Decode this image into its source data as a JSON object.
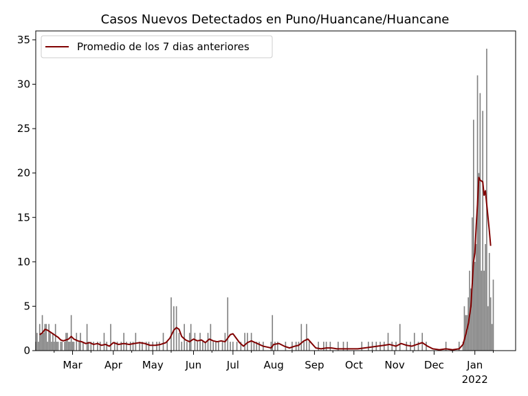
{
  "chart_data": {
    "type": "bar",
    "title": "Casos Nuevos Detectados en Puno/Huancane/Huancane",
    "xlabel": "",
    "ylabel": "",
    "ylim": [
      0,
      36
    ],
    "y_ticks": [
      "0",
      "5",
      "10",
      "15",
      "20",
      "25",
      "30",
      "35"
    ],
    "x_start": "2021-02-01",
    "x_end": "2022-01-31",
    "month_ticks": [
      {
        "label": "Mar",
        "date": "2021-03-01"
      },
      {
        "label": "Apr",
        "date": "2021-04-01"
      },
      {
        "label": "May",
        "date": "2021-05-01"
      },
      {
        "label": "Jun",
        "date": "2021-06-01"
      },
      {
        "label": "Jul",
        "date": "2021-07-01"
      },
      {
        "label": "Aug",
        "date": "2021-08-01"
      },
      {
        "label": "Sep",
        "date": "2021-09-01"
      },
      {
        "label": "Oct",
        "date": "2021-10-01"
      },
      {
        "label": "Nov",
        "date": "2021-11-01"
      },
      {
        "label": "Dec",
        "date": "2021-12-01"
      },
      {
        "label": "Jan",
        "date": "2022-01-01"
      }
    ],
    "year_label": "2022",
    "legend": {
      "position": "top-left",
      "entries": [
        {
          "name": "Promedio de los 7 dias anteriores",
          "color": "#800000"
        }
      ]
    },
    "bar_color": "#808080",
    "grid": false,
    "series": [
      {
        "name": "Casos nuevos",
        "kind": "bar",
        "points": [
          [
            "2021-02-01",
            1
          ],
          [
            "2021-02-02",
            2
          ],
          [
            "2021-02-03",
            1
          ],
          [
            "2021-02-04",
            3
          ],
          [
            "2021-02-05",
            2
          ],
          [
            "2021-02-06",
            4
          ],
          [
            "2021-02-07",
            2
          ],
          [
            "2021-02-08",
            3
          ],
          [
            "2021-02-09",
            3
          ],
          [
            "2021-02-10",
            1
          ],
          [
            "2021-02-11",
            3
          ],
          [
            "2021-02-12",
            2
          ],
          [
            "2021-02-13",
            1
          ],
          [
            "2021-02-14",
            2
          ],
          [
            "2021-02-15",
            1
          ],
          [
            "2021-02-16",
            3
          ],
          [
            "2021-02-17",
            1
          ],
          [
            "2021-02-18",
            1
          ],
          [
            "2021-02-20",
            1
          ],
          [
            "2021-02-21",
            1
          ],
          [
            "2021-02-23",
            1
          ],
          [
            "2021-02-24",
            2
          ],
          [
            "2021-02-25",
            2
          ],
          [
            "2021-02-26",
            1
          ],
          [
            "2021-02-27",
            1
          ],
          [
            "2021-02-28",
            4
          ],
          [
            "2021-03-01",
            1
          ],
          [
            "2021-03-02",
            1
          ],
          [
            "2021-03-04",
            2
          ],
          [
            "2021-03-06",
            1
          ],
          [
            "2021-03-07",
            2
          ],
          [
            "2021-03-09",
            1
          ],
          [
            "2021-03-12",
            3
          ],
          [
            "2021-03-13",
            1
          ],
          [
            "2021-03-15",
            1
          ],
          [
            "2021-03-17",
            1
          ],
          [
            "2021-03-20",
            1
          ],
          [
            "2021-03-22",
            1
          ],
          [
            "2021-03-25",
            2
          ],
          [
            "2021-03-27",
            1
          ],
          [
            "2021-03-30",
            3
          ],
          [
            "2021-04-02",
            1
          ],
          [
            "2021-04-04",
            1
          ],
          [
            "2021-04-07",
            1
          ],
          [
            "2021-04-09",
            2
          ],
          [
            "2021-04-11",
            1
          ],
          [
            "2021-04-14",
            1
          ],
          [
            "2021-04-16",
            1
          ],
          [
            "2021-04-18",
            2
          ],
          [
            "2021-04-21",
            1
          ],
          [
            "2021-04-23",
            1
          ],
          [
            "2021-04-26",
            1
          ],
          [
            "2021-04-28",
            1
          ],
          [
            "2021-05-01",
            1
          ],
          [
            "2021-05-04",
            1
          ],
          [
            "2021-05-06",
            1
          ],
          [
            "2021-05-09",
            2
          ],
          [
            "2021-05-12",
            1
          ],
          [
            "2021-05-15",
            6
          ],
          [
            "2021-05-17",
            5
          ],
          [
            "2021-05-19",
            5
          ],
          [
            "2021-05-21",
            2
          ],
          [
            "2021-05-23",
            1
          ],
          [
            "2021-05-25",
            3
          ],
          [
            "2021-05-27",
            1
          ],
          [
            "2021-05-29",
            2
          ],
          [
            "2021-05-30",
            3
          ],
          [
            "2021-06-02",
            2
          ],
          [
            "2021-06-04",
            1
          ],
          [
            "2021-06-06",
            2
          ],
          [
            "2021-06-08",
            1
          ],
          [
            "2021-06-10",
            1
          ],
          [
            "2021-06-12",
            2
          ],
          [
            "2021-06-14",
            3
          ],
          [
            "2021-06-16",
            1
          ],
          [
            "2021-06-18",
            1
          ],
          [
            "2021-06-20",
            1
          ],
          [
            "2021-06-23",
            1
          ],
          [
            "2021-06-25",
            2
          ],
          [
            "2021-06-27",
            6
          ],
          [
            "2021-06-29",
            1
          ],
          [
            "2021-07-01",
            1
          ],
          [
            "2021-07-04",
            1
          ],
          [
            "2021-07-07",
            1
          ],
          [
            "2021-07-10",
            2
          ],
          [
            "2021-07-12",
            2
          ],
          [
            "2021-07-15",
            2
          ],
          [
            "2021-07-17",
            1
          ],
          [
            "2021-07-19",
            1
          ],
          [
            "2021-07-21",
            1
          ],
          [
            "2021-07-24",
            1
          ],
          [
            "2021-07-30",
            1
          ],
          [
            "2021-07-31",
            4
          ],
          [
            "2021-08-02",
            1
          ],
          [
            "2021-08-04",
            1
          ],
          [
            "2021-08-10",
            1
          ],
          [
            "2021-08-15",
            1
          ],
          [
            "2021-08-18",
            1
          ],
          [
            "2021-08-20",
            1
          ],
          [
            "2021-08-22",
            3
          ],
          [
            "2021-08-24",
            1
          ],
          [
            "2021-08-26",
            3
          ],
          [
            "2021-08-28",
            1
          ],
          [
            "2021-09-04",
            1
          ],
          [
            "2021-09-08",
            1
          ],
          [
            "2021-09-10",
            1
          ],
          [
            "2021-09-13",
            1
          ],
          [
            "2021-09-19",
            1
          ],
          [
            "2021-09-23",
            1
          ],
          [
            "2021-09-26",
            1
          ],
          [
            "2021-10-07",
            1
          ],
          [
            "2021-10-12",
            1
          ],
          [
            "2021-10-15",
            1
          ],
          [
            "2021-10-18",
            1
          ],
          [
            "2021-10-21",
            1
          ],
          [
            "2021-10-24",
            1
          ],
          [
            "2021-10-27",
            2
          ],
          [
            "2021-10-30",
            1
          ],
          [
            "2021-11-02",
            1
          ],
          [
            "2021-11-05",
            3
          ],
          [
            "2021-11-10",
            1
          ],
          [
            "2021-11-13",
            1
          ],
          [
            "2021-11-16",
            2
          ],
          [
            "2021-11-19",
            1
          ],
          [
            "2021-11-22",
            2
          ],
          [
            "2021-11-25",
            1
          ],
          [
            "2021-12-10",
            1
          ],
          [
            "2021-12-20",
            1
          ],
          [
            "2021-12-23",
            1
          ],
          [
            "2021-12-24",
            5
          ],
          [
            "2021-12-25",
            4
          ],
          [
            "2021-12-26",
            4
          ],
          [
            "2021-12-27",
            6
          ],
          [
            "2021-12-28",
            9
          ],
          [
            "2021-12-29",
            7
          ],
          [
            "2021-12-30",
            15
          ],
          [
            "2021-12-31",
            26
          ],
          [
            "2022-01-01",
            10
          ],
          [
            "2022-01-02",
            12
          ],
          [
            "2022-01-03",
            31
          ],
          [
            "2022-01-04",
            20
          ],
          [
            "2022-01-05",
            29
          ],
          [
            "2022-01-06",
            9
          ],
          [
            "2022-01-07",
            27
          ],
          [
            "2022-01-08",
            9
          ],
          [
            "2022-01-09",
            12
          ],
          [
            "2022-01-10",
            34
          ],
          [
            "2022-01-11",
            5
          ],
          [
            "2022-01-12",
            11
          ],
          [
            "2022-01-13",
            6
          ],
          [
            "2022-01-14",
            3
          ],
          [
            "2022-01-15",
            8
          ]
        ]
      },
      {
        "name": "Promedio de los 7 dias anteriores",
        "kind": "line",
        "color": "#800000",
        "points": [
          [
            "2021-02-04",
            1.8
          ],
          [
            "2021-02-06",
            2.0
          ],
          [
            "2021-02-08",
            2.4
          ],
          [
            "2021-02-10",
            2.3
          ],
          [
            "2021-02-12",
            2.1
          ],
          [
            "2021-02-14",
            1.9
          ],
          [
            "2021-02-16",
            1.7
          ],
          [
            "2021-02-18",
            1.5
          ],
          [
            "2021-02-20",
            1.2
          ],
          [
            "2021-02-22",
            1.1
          ],
          [
            "2021-02-24",
            1.2
          ],
          [
            "2021-02-26",
            1.3
          ],
          [
            "2021-02-28",
            1.6
          ],
          [
            "2021-03-02",
            1.3
          ],
          [
            "2021-03-05",
            1.1
          ],
          [
            "2021-03-08",
            1.0
          ],
          [
            "2021-03-11",
            0.8
          ],
          [
            "2021-03-14",
            0.9
          ],
          [
            "2021-03-17",
            0.7
          ],
          [
            "2021-03-20",
            0.8
          ],
          [
            "2021-03-23",
            0.6
          ],
          [
            "2021-03-26",
            0.7
          ],
          [
            "2021-03-29",
            0.5
          ],
          [
            "2021-04-01",
            0.9
          ],
          [
            "2021-04-05",
            0.7
          ],
          [
            "2021-04-09",
            0.8
          ],
          [
            "2021-04-13",
            0.7
          ],
          [
            "2021-04-17",
            0.8
          ],
          [
            "2021-04-21",
            0.9
          ],
          [
            "2021-04-25",
            0.8
          ],
          [
            "2021-04-29",
            0.6
          ],
          [
            "2021-05-03",
            0.6
          ],
          [
            "2021-05-07",
            0.7
          ],
          [
            "2021-05-11",
            0.9
          ],
          [
            "2021-05-14",
            1.4
          ],
          [
            "2021-05-17",
            2.3
          ],
          [
            "2021-05-19",
            2.6
          ],
          [
            "2021-05-21",
            2.4
          ],
          [
            "2021-05-23",
            1.6
          ],
          [
            "2021-05-26",
            1.2
          ],
          [
            "2021-05-29",
            1.0
          ],
          [
            "2021-06-01",
            1.3
          ],
          [
            "2021-06-04",
            1.1
          ],
          [
            "2021-06-07",
            1.2
          ],
          [
            "2021-06-10",
            0.9
          ],
          [
            "2021-06-13",
            1.3
          ],
          [
            "2021-06-16",
            1.1
          ],
          [
            "2021-06-19",
            1.0
          ],
          [
            "2021-06-22",
            1.1
          ],
          [
            "2021-06-25",
            1.0
          ],
          [
            "2021-06-27",
            1.4
          ],
          [
            "2021-06-29",
            1.8
          ],
          [
            "2021-07-01",
            1.9
          ],
          [
            "2021-07-03",
            1.5
          ],
          [
            "2021-07-06",
            0.9
          ],
          [
            "2021-07-09",
            0.5
          ],
          [
            "2021-07-12",
            0.9
          ],
          [
            "2021-07-15",
            1.1
          ],
          [
            "2021-07-18",
            0.9
          ],
          [
            "2021-07-21",
            0.7
          ],
          [
            "2021-07-24",
            0.5
          ],
          [
            "2021-07-27",
            0.4
          ],
          [
            "2021-07-30",
            0.3
          ],
          [
            "2021-08-01",
            0.7
          ],
          [
            "2021-08-05",
            0.8
          ],
          [
            "2021-08-09",
            0.5
          ],
          [
            "2021-08-13",
            0.3
          ],
          [
            "2021-08-17",
            0.5
          ],
          [
            "2021-08-20",
            0.6
          ],
          [
            "2021-08-24",
            1.1
          ],
          [
            "2021-08-27",
            1.3
          ],
          [
            "2021-08-30",
            0.8
          ],
          [
            "2021-09-02",
            0.3
          ],
          [
            "2021-09-06",
            0.2
          ],
          [
            "2021-09-10",
            0.3
          ],
          [
            "2021-09-14",
            0.3
          ],
          [
            "2021-09-18",
            0.2
          ],
          [
            "2021-09-22",
            0.2
          ],
          [
            "2021-09-26",
            0.2
          ],
          [
            "2021-09-30",
            0.2
          ],
          [
            "2021-10-04",
            0.2
          ],
          [
            "2021-10-09",
            0.3
          ],
          [
            "2021-10-14",
            0.4
          ],
          [
            "2021-10-19",
            0.5
          ],
          [
            "2021-10-24",
            0.6
          ],
          [
            "2021-10-28",
            0.7
          ],
          [
            "2021-11-02",
            0.5
          ],
          [
            "2021-11-06",
            0.8
          ],
          [
            "2021-11-10",
            0.6
          ],
          [
            "2021-11-14",
            0.5
          ],
          [
            "2021-11-18",
            0.7
          ],
          [
            "2021-11-22",
            0.9
          ],
          [
            "2021-11-26",
            0.5
          ],
          [
            "2021-11-30",
            0.2
          ],
          [
            "2021-12-05",
            0.1
          ],
          [
            "2021-12-10",
            0.2
          ],
          [
            "2021-12-15",
            0.1
          ],
          [
            "2021-12-20",
            0.2
          ],
          [
            "2021-12-23",
            0.7
          ],
          [
            "2021-12-25",
            1.8
          ],
          [
            "2021-12-27",
            3.0
          ],
          [
            "2021-12-29",
            5.0
          ],
          [
            "2021-12-31",
            10.0
          ],
          [
            "2022-01-01",
            11.0
          ],
          [
            "2022-01-02",
            14.0
          ],
          [
            "2022-01-03",
            16.5
          ],
          [
            "2022-01-04",
            19.5
          ],
          [
            "2022-01-05",
            19.2
          ],
          [
            "2022-01-07",
            19.0
          ],
          [
            "2022-01-08",
            17.5
          ],
          [
            "2022-01-09",
            18.0
          ],
          [
            "2022-01-10",
            16.5
          ],
          [
            "2022-01-11",
            15.0
          ],
          [
            "2022-01-12",
            13.5
          ],
          [
            "2022-01-13",
            11.8
          ]
        ]
      }
    ]
  }
}
